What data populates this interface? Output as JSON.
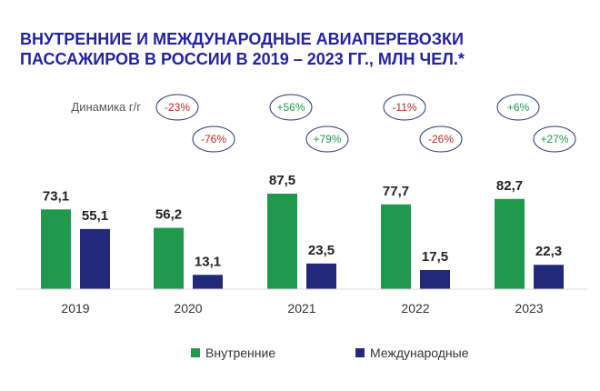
{
  "title_lines": [
    "ВНУТРЕННИЕ  И МЕЖДУНАРОДНЫЕ АВИАПЕРЕВОЗКИ",
    "ПАССАЖИРОВ В РОССИИ В 2019 – 2023 ГГ., МЛН ЧЕЛ.*"
  ],
  "dynamics_label": "Динамика г/г",
  "colors": {
    "domestic": "#1f9a4d",
    "international": "#23297a",
    "title": "#2323a3",
    "negative": "#c0262c",
    "positive": "#1f9a4d",
    "bubble_border": "#2a3a78",
    "value_text": "#222222",
    "axis_text": "#333333"
  },
  "chart_data": {
    "type": "bar",
    "categories": [
      "2019",
      "2020",
      "2021",
      "2022",
      "2023"
    ],
    "series": [
      {
        "name": "Внутренние",
        "values": [
          73.1,
          56.2,
          87.5,
          77.7,
          82.7
        ],
        "labels": [
          "73,1",
          "56,2",
          "87,5",
          "77,7",
          "82,7"
        ]
      },
      {
        "name": "Международные",
        "values": [
          55.1,
          13.1,
          23.5,
          17.5,
          22.3
        ],
        "labels": [
          "55,1",
          "13,1",
          "23,5",
          "17,5",
          "22,3"
        ]
      }
    ],
    "yoy_change": [
      {
        "category": "2020",
        "domestic": "-23%",
        "international": "-76%"
      },
      {
        "category": "2021",
        "domestic": "+56%",
        "international": "+79%"
      },
      {
        "category": "2022",
        "domestic": "-11%",
        "international": "-26%"
      },
      {
        "category": "2023",
        "domestic": "+6%",
        "international": "+27%"
      }
    ],
    "ylim": [
      0,
      100
    ],
    "grid": false,
    "legend_position": "bottom"
  }
}
